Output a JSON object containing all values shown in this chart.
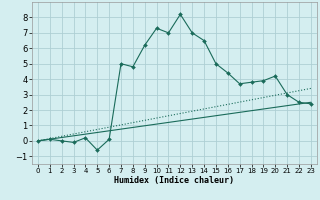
{
  "xlabel": "Humidex (Indice chaleur)",
  "background_color": "#d4eef0",
  "grid_color": "#aecfd4",
  "line_color": "#1a6b5a",
  "xlim": [
    -0.5,
    23.5
  ],
  "ylim": [
    -1.5,
    9.0
  ],
  "xticks": [
    0,
    1,
    2,
    3,
    4,
    5,
    6,
    7,
    8,
    9,
    10,
    11,
    12,
    13,
    14,
    15,
    16,
    17,
    18,
    19,
    20,
    21,
    22,
    23
  ],
  "yticks": [
    -1,
    0,
    1,
    2,
    3,
    4,
    5,
    6,
    7,
    8
  ],
  "line1_x": [
    0,
    1,
    2,
    3,
    4,
    5,
    6,
    7,
    8,
    9,
    10,
    11,
    12,
    13,
    14,
    15,
    16,
    17,
    18,
    19,
    20,
    21,
    22,
    23
  ],
  "line1_y": [
    0.0,
    0.1,
    0.0,
    -0.1,
    0.2,
    -0.6,
    0.1,
    5.0,
    4.8,
    6.2,
    7.3,
    7.0,
    8.2,
    7.0,
    6.5,
    5.0,
    4.4,
    3.7,
    3.8,
    3.9,
    4.2,
    3.0,
    2.5,
    2.4
  ],
  "line2_x": [
    0,
    23
  ],
  "line2_y": [
    0.0,
    2.5
  ],
  "line3_x": [
    0,
    23
  ],
  "line3_y": [
    0.0,
    3.4
  ]
}
